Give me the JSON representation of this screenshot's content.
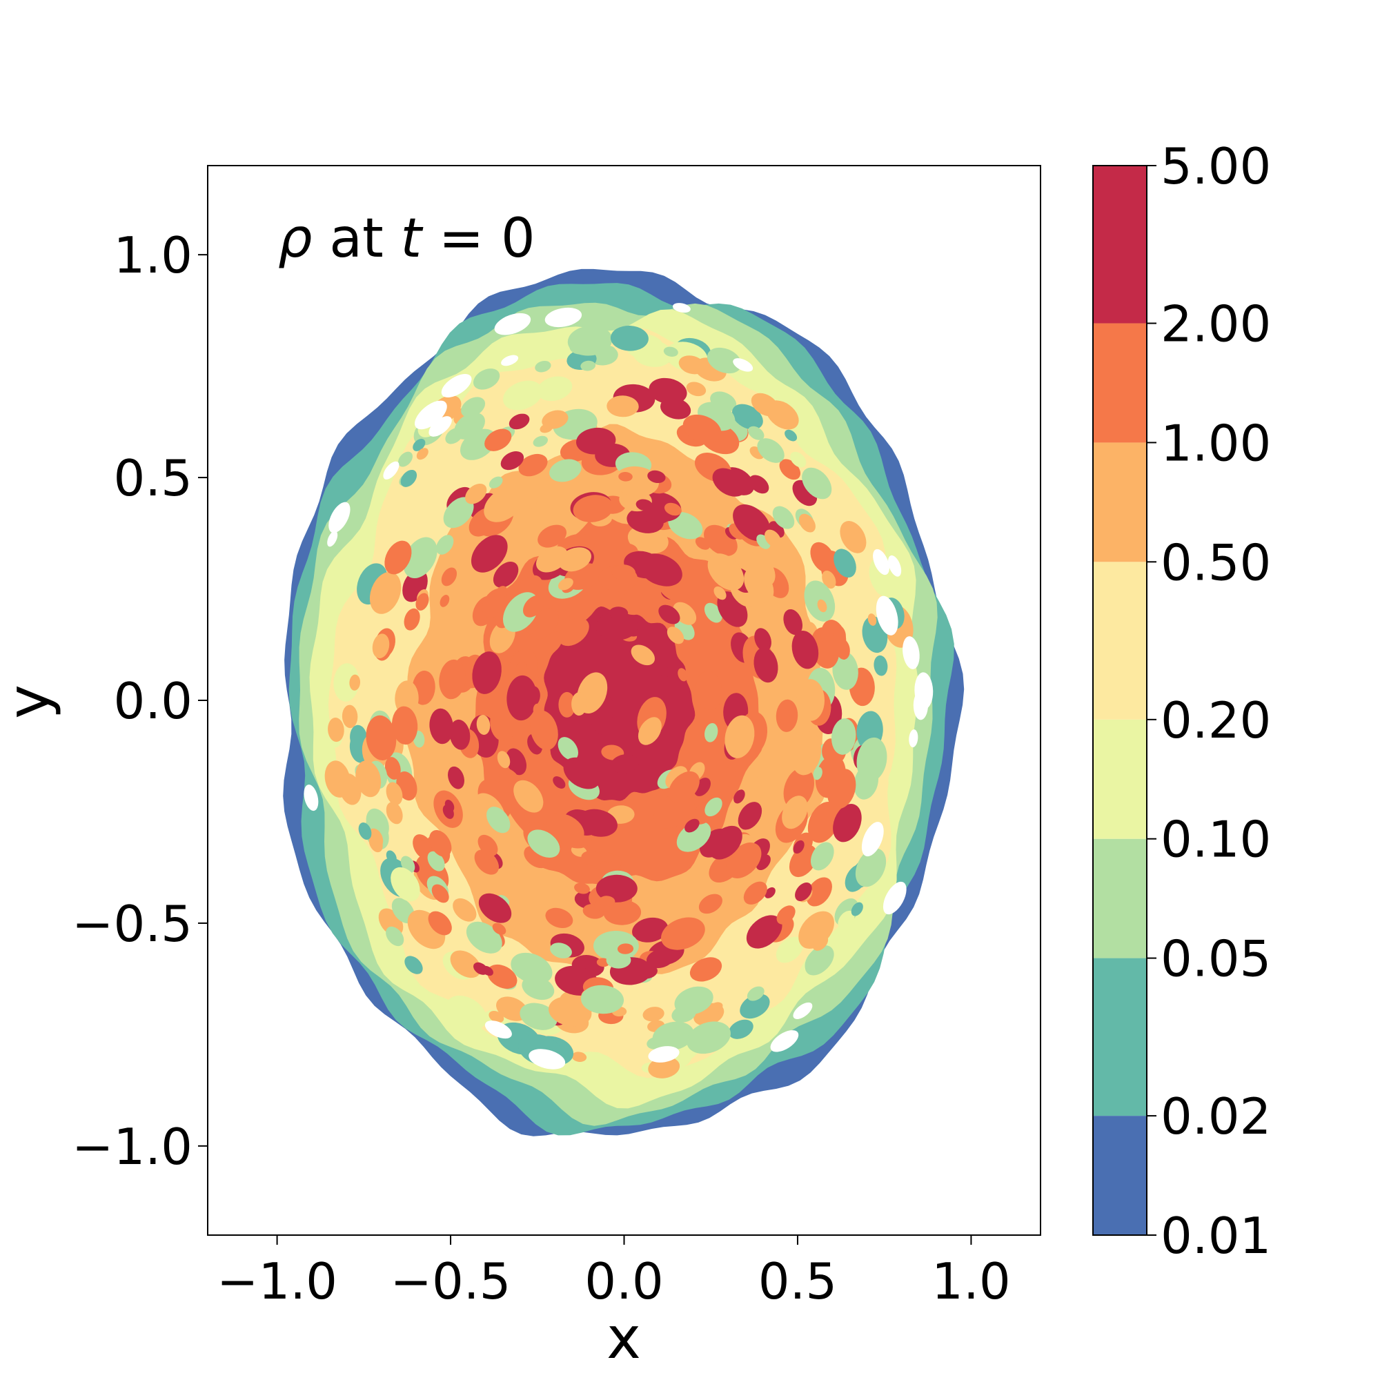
{
  "chart_data": {
    "type": "heatmap",
    "annotation": {
      "symbol": "ρ",
      "text": " at ",
      "time_symbol": "t",
      "equals": " = ",
      "time_value": "0"
    },
    "xlabel": "x",
    "ylabel": "y",
    "xlim": [
      -1.2,
      1.2
    ],
    "ylim": [
      -1.2,
      1.2
    ],
    "x_ticks": [
      -1.0,
      -0.5,
      0.0,
      0.5,
      1.0
    ],
    "x_tick_labels": [
      "−1.0",
      "−0.5",
      "0.0",
      "0.5",
      "1.0"
    ],
    "y_ticks": [
      -1.0,
      -0.5,
      0.0,
      0.5,
      1.0
    ],
    "y_tick_labels": [
      "−1.0",
      "−0.5",
      "0.0",
      "0.5",
      "1.0"
    ],
    "grid": false,
    "colorbar": {
      "levels": [
        "0.01",
        "0.02",
        "0.05",
        "0.10",
        "0.20",
        "0.50",
        "1.00",
        "2.00",
        "5.00"
      ],
      "level_values": [
        0.01,
        0.02,
        0.05,
        0.1,
        0.2,
        0.5,
        1.0,
        2.0,
        5.0
      ],
      "scale": "log",
      "colors": [
        "#4a6fb2",
        "#63b9a8",
        "#b2dfa2",
        "#eaf5a3",
        "#fde9a0",
        "#fcb366",
        "#f57849",
        "#c42a48"
      ]
    },
    "blob": {
      "center": [
        -0.02,
        -0.01
      ],
      "radius_x": 0.97,
      "radius_y": 0.97,
      "scale": "log"
    }
  }
}
